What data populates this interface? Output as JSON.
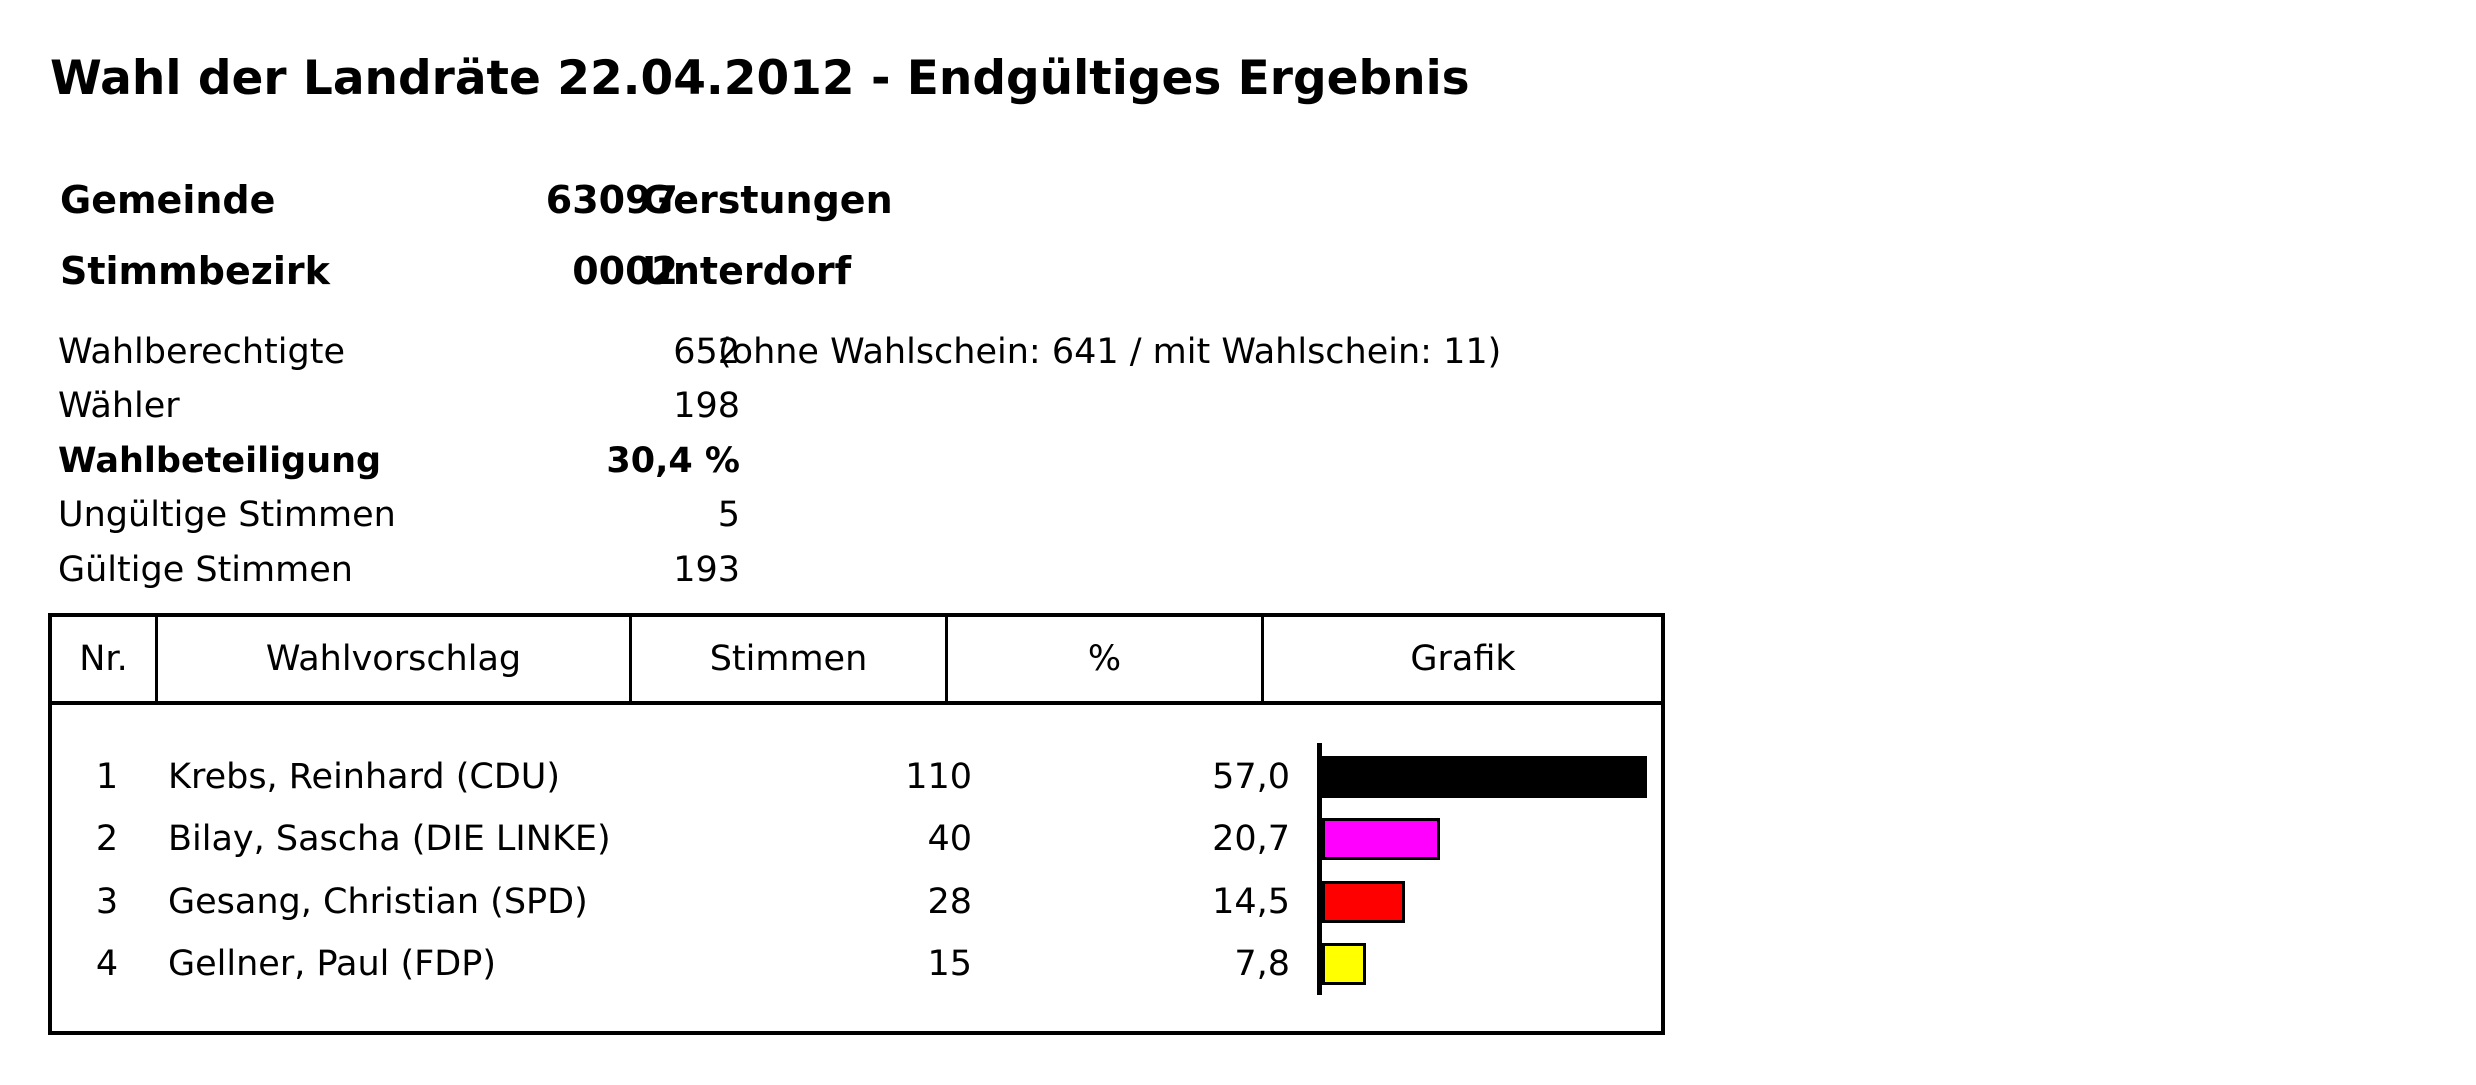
{
  "title": "Wahl der Landräte 22.04.2012 - Endgültiges Ergebnis",
  "gemeinde": {
    "label": "Gemeinde",
    "code": "63097",
    "name": "Gerstungen"
  },
  "stimmbezirk": {
    "label": "Stimmbezirk",
    "code": "0002",
    "name": "Unterdorf"
  },
  "stats": [
    {
      "label": "Wahlberechtigte",
      "value": "652",
      "note": "(ohne Wahlschein: 641 / mit Wahlschein: 11)"
    },
    {
      "label": "Wähler",
      "value": "198",
      "note": ""
    },
    {
      "label": "Wahlbeteiligung",
      "value": "30,4 %",
      "note": ""
    },
    {
      "label": "Ungültige Stimmen",
      "value": "5",
      "note": ""
    },
    {
      "label": "Gültige Stimmen",
      "value": "193",
      "note": ""
    }
  ],
  "table": {
    "headers": [
      "Nr.",
      "Wahlvorschlag",
      "Stimmen",
      "%",
      "Grafik"
    ],
    "rows": [
      {
        "nr": "1",
        "name": "Krebs, Reinhard (CDU)",
        "votes": "110",
        "pct": "57,0"
      },
      {
        "nr": "2",
        "name": "Bilay, Sascha (DIE LINKE)",
        "votes": "40",
        "pct": "20,7"
      },
      {
        "nr": "3",
        "name": "Gesang, Christian (SPD)",
        "votes": "28",
        "pct": "14,5"
      },
      {
        "nr": "4",
        "name": "Gellner, Paul (FDP)",
        "votes": "15",
        "pct": "7,8"
      }
    ]
  },
  "chart_data": {
    "type": "bar",
    "orientation": "horizontal",
    "categories": [
      "Krebs, Reinhard (CDU)",
      "Bilay, Sascha (DIE LINKE)",
      "Gesang, Christian (SPD)",
      "Gellner, Paul (FDP)"
    ],
    "values": [
      57.0,
      20.7,
      14.5,
      7.8
    ],
    "colors": [
      "#000000",
      "#ff00ff",
      "#ff0000",
      "#ffff00"
    ],
    "xlim": [
      0,
      57.0
    ]
  }
}
